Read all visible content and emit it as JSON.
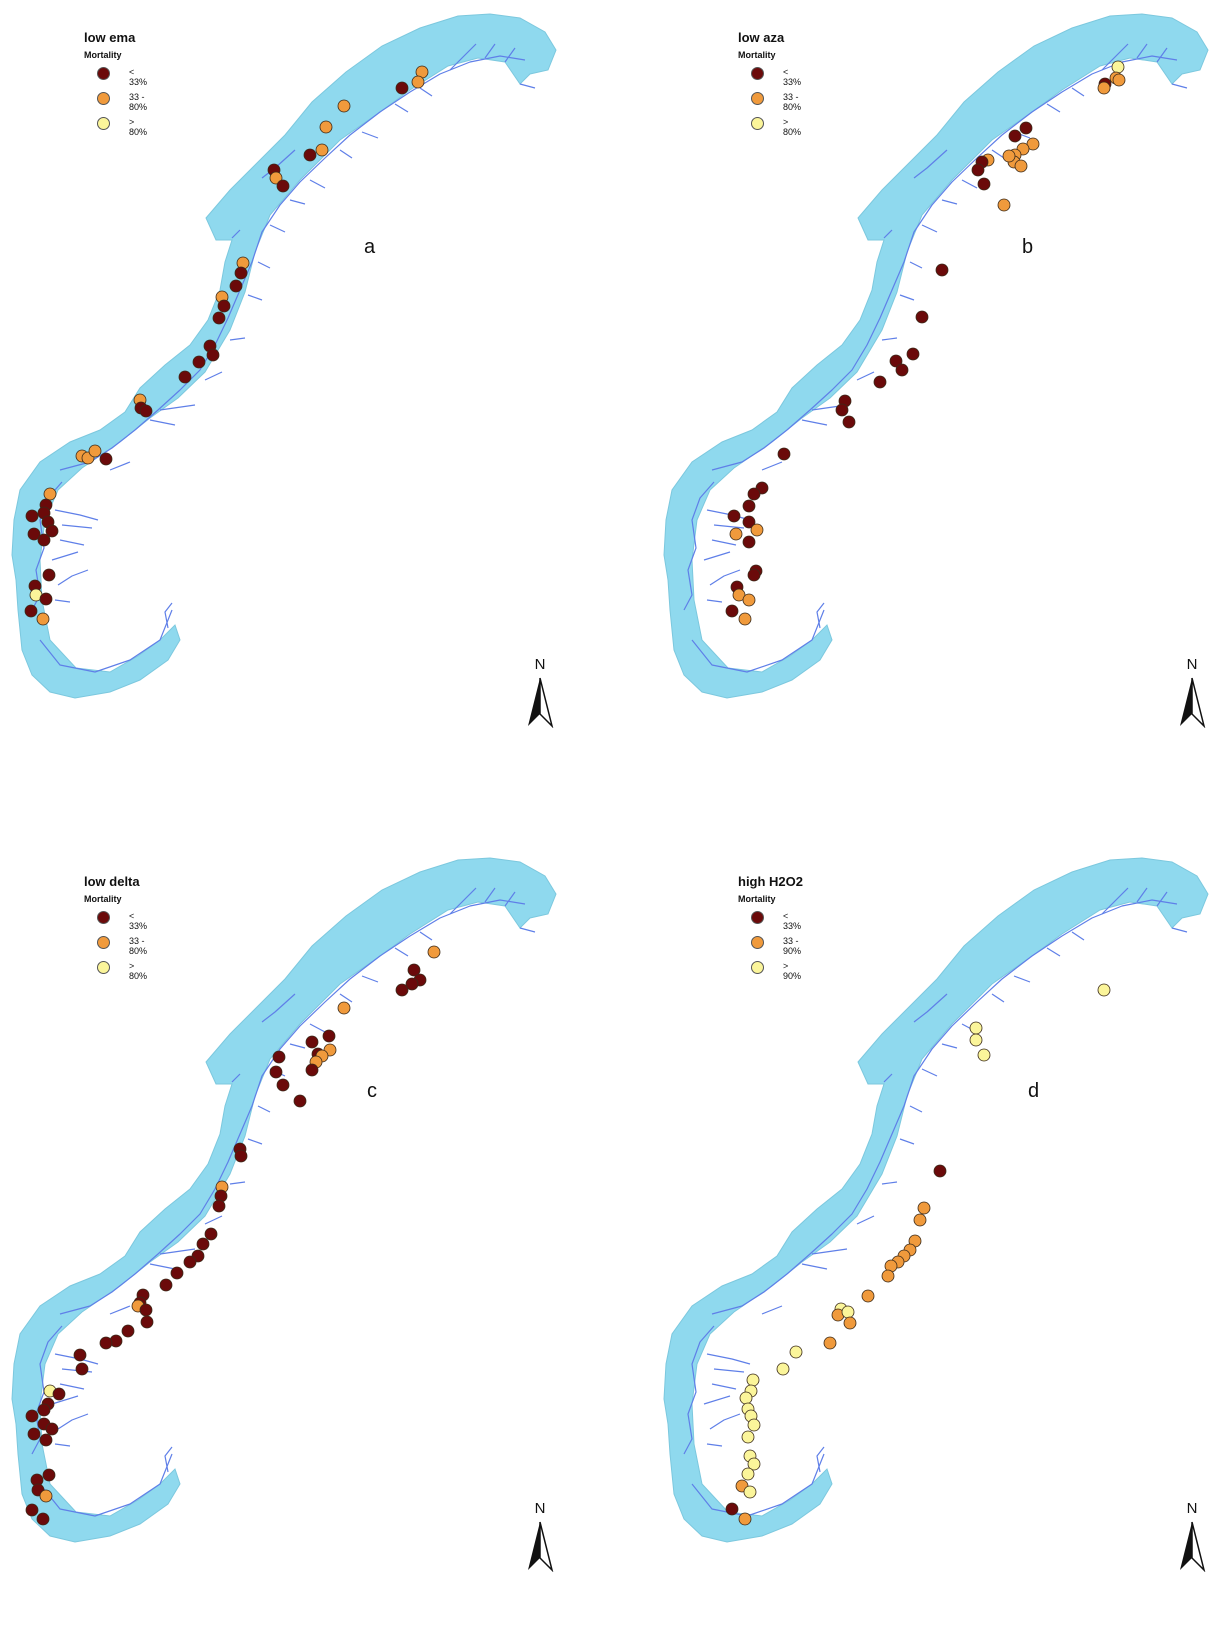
{
  "colors": {
    "sea": "#8fd9ee",
    "fjord": "#5f7fe8",
    "low": "#6b0a0a",
    "mid": "#f09a3c",
    "high": "#fbf59a"
  },
  "panels": [
    {
      "id": "a",
      "title": "low ema",
      "subtitle": "Mortality",
      "legend": [
        "< 33%",
        "33 - 80%",
        "> 80%"
      ],
      "letter": "a",
      "north": "N",
      "sites": [
        [
          "mid",
          422,
          72
        ],
        [
          "mid",
          418,
          82
        ],
        [
          "low",
          402,
          88
        ],
        [
          "mid",
          344,
          106
        ],
        [
          "mid",
          326,
          127
        ],
        [
          "low",
          310,
          155
        ],
        [
          "mid",
          322,
          150
        ],
        [
          "low",
          274,
          170
        ],
        [
          "mid",
          276,
          178
        ],
        [
          "low",
          283,
          186
        ],
        [
          "mid",
          243,
          263
        ],
        [
          "low",
          241,
          273
        ],
        [
          "low",
          236,
          286
        ],
        [
          "mid",
          222,
          297
        ],
        [
          "low",
          224,
          306
        ],
        [
          "low",
          219,
          318
        ],
        [
          "low",
          210,
          346
        ],
        [
          "low",
          213,
          355
        ],
        [
          "low",
          199,
          362
        ],
        [
          "low",
          185,
          377
        ],
        [
          "mid",
          140,
          400
        ],
        [
          "low",
          141,
          408
        ],
        [
          "low",
          146,
          411
        ],
        [
          "mid",
          82,
          456
        ],
        [
          "mid",
          88,
          458
        ],
        [
          "mid",
          95,
          451
        ],
        [
          "low",
          106,
          459
        ],
        [
          "mid",
          50,
          494
        ],
        [
          "low",
          46,
          505
        ],
        [
          "low",
          44,
          513
        ],
        [
          "low",
          32,
          516
        ],
        [
          "low",
          48,
          522
        ],
        [
          "low",
          52,
          531
        ],
        [
          "low",
          34,
          534
        ],
        [
          "low",
          44,
          540
        ],
        [
          "low",
          49,
          575
        ],
        [
          "low",
          35,
          586
        ],
        [
          "high",
          36,
          595
        ],
        [
          "low",
          46,
          599
        ],
        [
          "low",
          31,
          611
        ],
        [
          "mid",
          43,
          619
        ]
      ]
    },
    {
      "id": "b",
      "title": "low aza",
      "subtitle": "Mortality",
      "legend": [
        "< 33%",
        "33 - 80%",
        "> 80%"
      ],
      "letter": "b",
      "north": "N",
      "sites": [
        [
          "high",
          466,
          67
        ],
        [
          "mid",
          464,
          78
        ],
        [
          "low",
          453,
          84
        ],
        [
          "mid",
          467,
          80
        ],
        [
          "mid",
          452,
          88
        ],
        [
          "low",
          374,
          128
        ],
        [
          "low",
          363,
          136
        ],
        [
          "mid",
          381,
          144
        ],
        [
          "mid",
          371,
          149
        ],
        [
          "mid",
          363,
          155
        ],
        [
          "mid",
          336,
          160
        ],
        [
          "mid",
          362,
          162
        ],
        [
          "mid",
          369,
          166
        ],
        [
          "mid",
          357,
          156
        ],
        [
          "low",
          330,
          162
        ],
        [
          "low",
          326,
          170
        ],
        [
          "low",
          332,
          184
        ],
        [
          "mid",
          352,
          205
        ],
        [
          "low",
          290,
          270
        ],
        [
          "low",
          270,
          317
        ],
        [
          "low",
          261,
          354
        ],
        [
          "low",
          244,
          361
        ],
        [
          "low",
          250,
          370
        ],
        [
          "low",
          228,
          382
        ],
        [
          "low",
          193,
          401
        ],
        [
          "low",
          190,
          410
        ],
        [
          "low",
          197,
          422
        ],
        [
          "low",
          132,
          454
        ],
        [
          "low",
          110,
          488
        ],
        [
          "low",
          102,
          494
        ],
        [
          "low",
          97,
          506
        ],
        [
          "low",
          82,
          516
        ],
        [
          "low",
          97,
          522
        ],
        [
          "mid",
          105,
          530
        ],
        [
          "mid",
          84,
          534
        ],
        [
          "low",
          97,
          542
        ],
        [
          "low",
          104,
          571
        ],
        [
          "low",
          102,
          575
        ],
        [
          "low",
          85,
          587
        ],
        [
          "mid",
          87,
          595
        ],
        [
          "mid",
          97,
          600
        ],
        [
          "low",
          80,
          611
        ],
        [
          "mid",
          93,
          619
        ]
      ]
    },
    {
      "id": "c",
      "title": "low delta",
      "subtitle": "Mortality",
      "legend": [
        "< 33%",
        "33 - 80%",
        "> 80%"
      ],
      "letter": "c",
      "north": "N",
      "sites": [
        [
          "mid",
          434,
          108
        ],
        [
          "low",
          414,
          126
        ],
        [
          "low",
          420,
          136
        ],
        [
          "low",
          402,
          146
        ],
        [
          "low",
          412,
          140
        ],
        [
          "mid",
          344,
          164
        ],
        [
          "low",
          329,
          192
        ],
        [
          "low",
          312,
          198
        ],
        [
          "low",
          318,
          210
        ],
        [
          "mid",
          330,
          206
        ],
        [
          "mid",
          322,
          212
        ],
        [
          "mid",
          316,
          218
        ],
        [
          "low",
          312,
          226
        ],
        [
          "low",
          279,
          213
        ],
        [
          "low",
          276,
          228
        ],
        [
          "low",
          283,
          241
        ],
        [
          "low",
          300,
          257
        ],
        [
          "low",
          240,
          305
        ],
        [
          "low",
          241,
          312
        ],
        [
          "mid",
          222,
          343
        ],
        [
          "low",
          221,
          352
        ],
        [
          "low",
          219,
          362
        ],
        [
          "low",
          211,
          390
        ],
        [
          "low",
          203,
          400
        ],
        [
          "low",
          198,
          412
        ],
        [
          "low",
          190,
          418
        ],
        [
          "low",
          177,
          429
        ],
        [
          "low",
          166,
          441
        ],
        [
          "low",
          143,
          451
        ],
        [
          "low",
          140,
          459
        ],
        [
          "mid",
          138,
          462
        ],
        [
          "low",
          146,
          466
        ],
        [
          "low",
          147,
          478
        ],
        [
          "low",
          128,
          487
        ],
        [
          "low",
          116,
          497
        ],
        [
          "low",
          106,
          499
        ],
        [
          "low",
          80,
          511
        ],
        [
          "low",
          82,
          525
        ],
        [
          "high",
          50,
          547
        ],
        [
          "low",
          59,
          550
        ],
        [
          "low",
          48,
          560
        ],
        [
          "low",
          44,
          566
        ],
        [
          "low",
          32,
          572
        ],
        [
          "low",
          44,
          580
        ],
        [
          "low",
          52,
          585
        ],
        [
          "low",
          34,
          590
        ],
        [
          "low",
          46,
          596
        ],
        [
          "low",
          49,
          631
        ],
        [
          "low",
          37,
          636
        ],
        [
          "low",
          38,
          646
        ],
        [
          "mid",
          46,
          652
        ],
        [
          "low",
          32,
          666
        ],
        [
          "low",
          43,
          675
        ]
      ]
    },
    {
      "id": "d",
      "title": "high H2O2",
      "subtitle": "Mortality",
      "legend": [
        "< 33%",
        "33 - 90%",
        "> 90%"
      ],
      "letter": "d",
      "north": "N",
      "sites": [
        [
          "high",
          452,
          146
        ],
        [
          "high",
          324,
          184
        ],
        [
          "high",
          324,
          196
        ],
        [
          "high",
          332,
          211
        ],
        [
          "low",
          288,
          327
        ],
        [
          "mid",
          272,
          364
        ],
        [
          "mid",
          268,
          376
        ],
        [
          "mid",
          263,
          397
        ],
        [
          "mid",
          258,
          406
        ],
        [
          "mid",
          252,
          412
        ],
        [
          "mid",
          246,
          418
        ],
        [
          "mid",
          239,
          422
        ],
        [
          "mid",
          236,
          432
        ],
        [
          "mid",
          216,
          452
        ],
        [
          "high",
          189,
          465
        ],
        [
          "mid",
          186,
          471
        ],
        [
          "high",
          196,
          468
        ],
        [
          "mid",
          198,
          479
        ],
        [
          "mid",
          178,
          499
        ],
        [
          "high",
          144,
          508
        ],
        [
          "high",
          131,
          525
        ],
        [
          "high",
          101,
          536
        ],
        [
          "high",
          99,
          547
        ],
        [
          "high",
          94,
          554
        ],
        [
          "high",
          96,
          565
        ],
        [
          "high",
          99,
          572
        ],
        [
          "high",
          102,
          581
        ],
        [
          "high",
          96,
          593
        ],
        [
          "high",
          98,
          612
        ],
        [
          "high",
          102,
          620
        ],
        [
          "high",
          96,
          630
        ],
        [
          "mid",
          90,
          642
        ],
        [
          "high",
          98,
          648
        ],
        [
          "low",
          80,
          665
        ],
        [
          "mid",
          93,
          675
        ]
      ]
    }
  ]
}
